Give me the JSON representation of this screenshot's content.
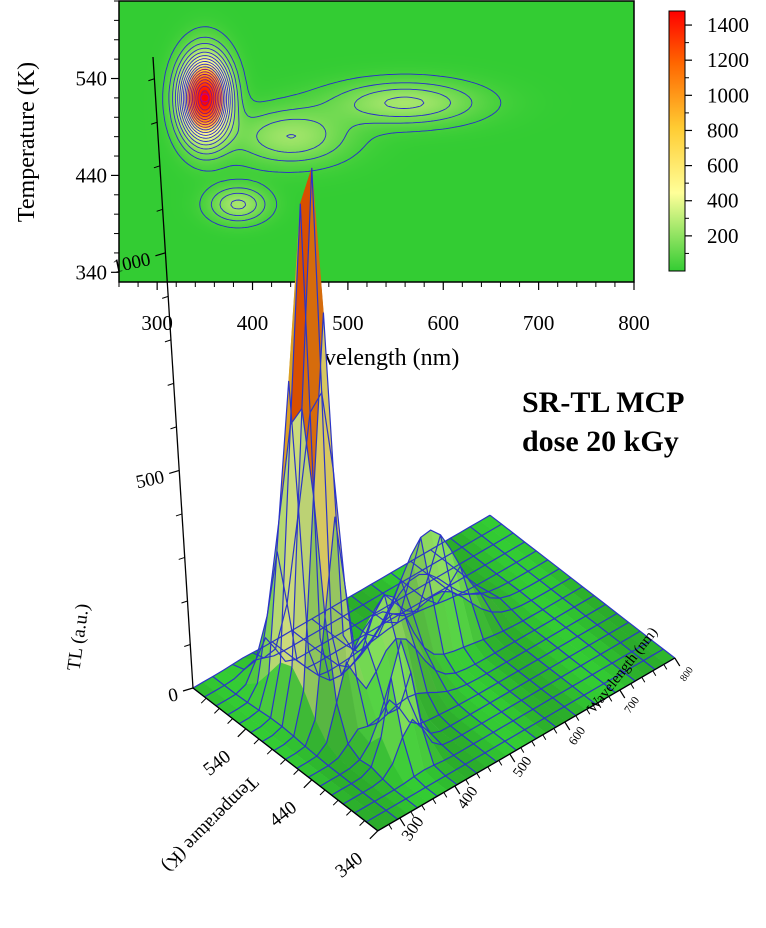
{
  "title": {
    "line1": "SR-TL MCP",
    "line2": "dose 20 kGy"
  },
  "chart_data": [
    {
      "type": "heatmap",
      "subtype": "contour",
      "xlabel": "Wavelength (nm)",
      "ylabel": "Temperature (K)",
      "xlim": [
        260,
        800
      ],
      "ylim": [
        330,
        620
      ],
      "xticks": [
        300,
        400,
        500,
        600,
        700,
        800
      ],
      "yticks": [
        340,
        440,
        540
      ],
      "xtick_labels": [
        "300",
        "400",
        "500",
        "600",
        "700",
        "800"
      ],
      "ytick_labels": [
        "340",
        "440",
        "540"
      ],
      "colorbar": {
        "ticks": [
          200,
          400,
          600,
          800,
          1000,
          1200,
          1400
        ],
        "tick_labels": [
          "200",
          "400",
          "600",
          "800",
          "1000",
          "1200",
          "1400"
        ],
        "range": [
          0,
          1480
        ],
        "colors": [
          "#33cc33",
          "#ffff99",
          "#ffcc33",
          "#ff6600",
          "#ff0000"
        ]
      },
      "peaks": [
        {
          "wavelength": 350,
          "temperature": 520,
          "tl": 1450
        },
        {
          "wavelength": 385,
          "temperature": 410,
          "tl": 300
        },
        {
          "wavelength": 560,
          "temperature": 515,
          "tl": 300
        }
      ]
    },
    {
      "type": "surface3d",
      "zlabel": "TL (a.u.)",
      "xlabel": "Wavelength (nm)",
      "ylabel": "Temperature (K)",
      "zticks": [
        0,
        500,
        1000
      ],
      "ztick_labels": [
        "0",
        "500",
        "1000"
      ],
      "xticks": [
        300,
        400,
        500,
        600,
        700,
        800
      ],
      "xtick_labels": [
        "300",
        "400",
        "500",
        "600",
        "700",
        "800"
      ],
      "yticks": [
        340,
        440,
        540
      ],
      "ytick_labels": [
        "340",
        "440",
        "540"
      ],
      "zlim": [
        0,
        1450
      ]
    }
  ]
}
